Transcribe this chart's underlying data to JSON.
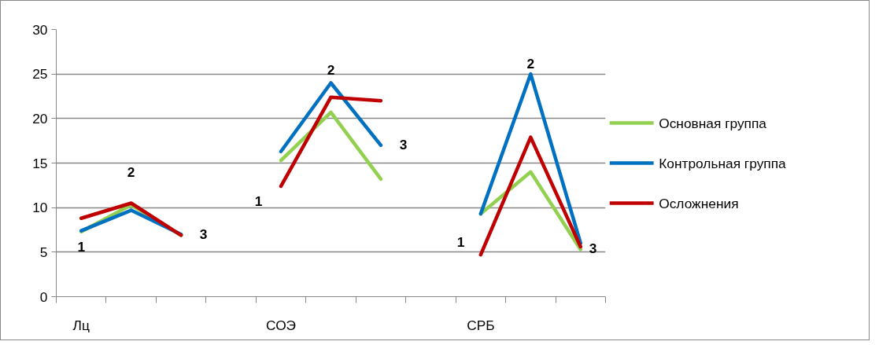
{
  "chart_data": {
    "type": "line",
    "categories": [
      "Лц",
      null,
      null,
      null,
      "СОЭ",
      null,
      null,
      null,
      "СРБ",
      null,
      null
    ],
    "series": [
      {
        "name": "Основная группа",
        "color": "#92d050",
        "values": [
          7.3,
          10.3,
          6.9,
          null,
          15.3,
          20.7,
          13.2,
          null,
          9.3,
          14.0,
          5.3
        ]
      },
      {
        "name": "Контрольная группа",
        "color": "#0070c0",
        "values": [
          7.4,
          9.7,
          7.0,
          null,
          16.3,
          24.0,
          17.0,
          null,
          9.3,
          25.0,
          6.0
        ]
      },
      {
        "name": "Осложнения",
        "color": "#c00000",
        "values": [
          8.8,
          10.5,
          6.9,
          null,
          12.4,
          22.4,
          22.0,
          null,
          4.7,
          17.9,
          5.6
        ]
      }
    ],
    "annotations": [
      "1",
      "2",
      "3",
      "1",
      "2",
      "3",
      "1",
      "2",
      "3"
    ],
    "ylim": [
      0,
      30
    ],
    "yticks": [
      0,
      5,
      10,
      15,
      20,
      25,
      30
    ],
    "grid": "y",
    "legend": "right",
    "marker": "none",
    "line_style": "solid"
  }
}
